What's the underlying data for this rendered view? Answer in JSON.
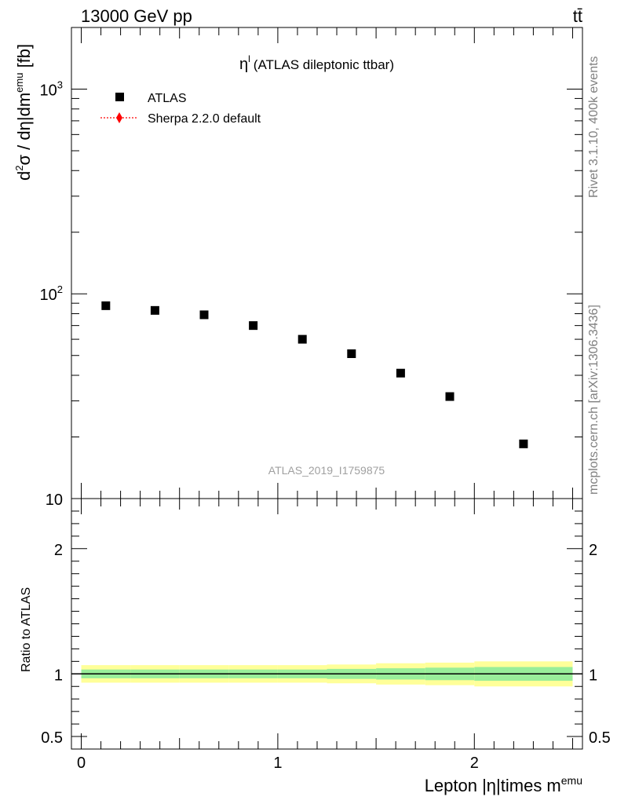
{
  "header": {
    "process": "13000 GeV pp",
    "topright": "tt̄"
  },
  "side": {
    "rivet": "Rivet 3.1.10,  400k events",
    "mcplots": "mcplots.cern.ch [arXiv:1306.3436]"
  },
  "chart_data": [
    {
      "type": "scatter",
      "panel": "main",
      "title": "η",
      "title_sup": "l",
      "title_rest": "(ATLAS dileptonic ttbar)",
      "ylabel": {
        "p1": "d",
        "s1": "2",
        "p2": "σ / dη|dm",
        "s2": "emu",
        "p3": " [fb]"
      },
      "yscale": "log",
      "ylim": [
        10,
        2000
      ],
      "xlim": [
        -0.05,
        2.55
      ],
      "yticks": [
        {
          "v": 10,
          "label": "10",
          "exp": ""
        },
        {
          "v": 100,
          "label": "10",
          "exp": "2"
        },
        {
          "v": 1000,
          "label": "10",
          "exp": "3"
        }
      ],
      "legend_position": "top-left",
      "legend": [
        {
          "name": "ATLAS",
          "marker": "square",
          "color": "#000000"
        },
        {
          "name": "Sherpa 2.2.0 default",
          "marker": "diamond-dotted",
          "color": "#ff0000"
        }
      ],
      "watermark": "ATLAS_2019_I1759875",
      "series": [
        {
          "name": "ATLAS",
          "x": [
            0.125,
            0.375,
            0.625,
            0.875,
            1.125,
            1.375,
            1.625,
            1.875,
            2.25
          ],
          "values": [
            87.5,
            83,
            79,
            70,
            60,
            51,
            41,
            31.5,
            18.5
          ]
        }
      ]
    },
    {
      "type": "line",
      "panel": "ratio",
      "ylabel": "Ratio to ATLAS",
      "xlabel": {
        "p1": "Lepton |η|times m",
        "s1": "emu"
      },
      "ylim": [
        0.4,
        2.4
      ],
      "xlim": [
        -0.05,
        2.55
      ],
      "xticks": [
        {
          "v": 0,
          "label": "0"
        },
        {
          "v": 1,
          "label": "1"
        },
        {
          "v": 2,
          "label": "2"
        }
      ],
      "yticks": [
        {
          "v": 0.5,
          "label": "0.5"
        },
        {
          "v": 1,
          "label": "1"
        },
        {
          "v": 2,
          "label": "2"
        }
      ],
      "reference_line": 1,
      "bins": [
        0,
        0.25,
        0.5,
        0.75,
        1.0,
        1.25,
        1.5,
        1.75,
        2.0,
        2.5
      ],
      "band_outer": [
        0.07,
        0.07,
        0.07,
        0.07,
        0.07,
        0.075,
        0.085,
        0.09,
        0.1
      ],
      "band_inner": [
        0.035,
        0.035,
        0.035,
        0.035,
        0.035,
        0.04,
        0.045,
        0.05,
        0.055
      ],
      "band_colors": {
        "outer": "#ffff99",
        "inner": "#99ee99"
      }
    }
  ]
}
